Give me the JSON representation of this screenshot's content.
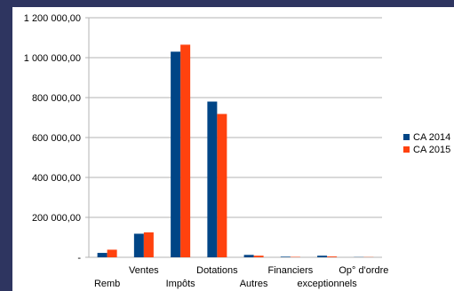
{
  "chart_data": {
    "type": "bar",
    "categories": [
      "Remb",
      "Ventes",
      "Impôts",
      "Dotations",
      "Autres",
      "Financiers",
      "exceptionnels",
      "Op° d'ordre"
    ],
    "series": [
      {
        "name": "CA 2014",
        "color": "#004586",
        "values": [
          22000,
          118000,
          1030000,
          780000,
          12000,
          3000,
          8000,
          1000
        ]
      },
      {
        "name": "CA 2015",
        "color": "#ff420e",
        "values": [
          38000,
          125000,
          1065000,
          718000,
          8000,
          2000,
          4000,
          1000
        ]
      }
    ],
    "yticks": [
      "-",
      "200 000,00",
      "400 000,00",
      "600 000,00",
      "800 000,00",
      "1 000 000,00",
      "1 200 000,00"
    ],
    "ylim": [
      0,
      1200000
    ],
    "grid": true,
    "legend": "right"
  }
}
